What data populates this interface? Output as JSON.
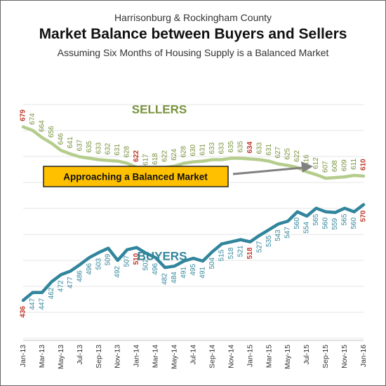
{
  "chart_data": {
    "type": "line",
    "supertitle": "Harrisonburg & Rockingham County",
    "title": "Market Balance between Buyers and Sellers",
    "subtitle": "Assuming Six Months of Housing Supply is a Balanced Market",
    "x": [
      "Jan-13",
      "Feb-13",
      "Mar-13",
      "Apr-13",
      "May-13",
      "Jun-13",
      "Jul-13",
      "Aug-13",
      "Sep-13",
      "Oct-13",
      "Nov-13",
      "Dec-13",
      "Jan-14",
      "Feb-14",
      "Mar-14",
      "Apr-14",
      "May-14",
      "Jun-14",
      "Jul-14",
      "Aug-14",
      "Sep-14",
      "Oct-14",
      "Nov-14",
      "Dec-14",
      "Jan-15",
      "Feb-15",
      "Mar-15",
      "Apr-15",
      "May-15",
      "Jun-15",
      "Jul-15",
      "Aug-15",
      "Sep-15",
      "Oct-15",
      "Nov-15",
      "Dec-15",
      "Jan-16"
    ],
    "x_tick_labels": [
      "Jan-13",
      "Mar-13",
      "May-13",
      "Jul-13",
      "Sep-13",
      "Nov-13",
      "Jan-14",
      "Mar-14",
      "May-14",
      "Jul-14",
      "Sep-14",
      "Nov-14",
      "Jan-15",
      "Mar-15",
      "May-15",
      "Jul-15",
      "Sep-15",
      "Nov-15",
      "Jan-16"
    ],
    "series": [
      {
        "name": "SELLERS",
        "color": "#b5cd8c",
        "label_color": "#76923c",
        "values": [
          679,
          674,
          664,
          656,
          646,
          641,
          637,
          635,
          633,
          632,
          631,
          628,
          622,
          617,
          618,
          622,
          624,
          628,
          630,
          631,
          633,
          633,
          635,
          635,
          634,
          633,
          631,
          627,
          625,
          622,
          616,
          612,
          607,
          608,
          609,
          611,
          610
        ]
      },
      {
        "name": "BUYERS",
        "color": "#31859c",
        "label_color": "#31859c",
        "values": [
          436,
          447,
          447,
          462,
          472,
          477,
          486,
          496,
          503,
          509,
          492,
          507,
          510,
          502,
          496,
          482,
          484,
          491,
          495,
          491,
          504,
          515,
          518,
          521,
          518,
          527,
          535,
          543,
          547,
          560,
          554,
          565,
          560,
          559,
          565,
          560,
          570
        ]
      }
    ],
    "highlight_color": "#c0392b",
    "highlight_indices": [
      0,
      12,
      24,
      36
    ],
    "annotation": {
      "text": "Approaching a Balanced Market",
      "box_color": "#ffc000",
      "arrow_color": "#808080"
    },
    "ylim": [
      380,
      720
    ],
    "grid": true
  }
}
